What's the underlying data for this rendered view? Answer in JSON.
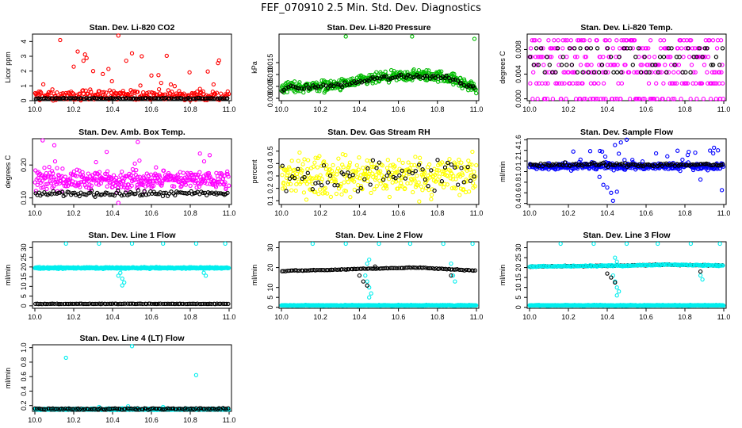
{
  "figure": {
    "title": "FEF_070910  2.5 Min. Std. Dev. Diagnostics"
  },
  "chart_data": [
    {
      "type": "scatter",
      "title": "Stan. Dev. Li-820 CO2",
      "ylabel": "Licor ppm",
      "xlim": [
        10.0,
        11.0
      ],
      "ylim": [
        0,
        4.5
      ],
      "xticks": [
        "10.0",
        "10.2",
        "10.4",
        "10.6",
        "10.8",
        "11.0"
      ],
      "yticks": [
        "0",
        "1",
        "2",
        "3",
        "4"
      ],
      "series": [
        {
          "name": "scatter",
          "color": "#ff0000",
          "n": 260,
          "base": 0.35,
          "spread": 0.55,
          "spike": 0.06,
          "spikemax": 3.0,
          "outliers": [
            [
              10.13,
              4.1
            ],
            [
              10.43,
              4.4
            ],
            [
              10.5,
              3.2
            ],
            [
              10.55,
              3.0
            ],
            [
              10.47,
              2.7
            ],
            [
              10.2,
              2.3
            ],
            [
              10.25,
              2.7
            ],
            [
              10.3,
              2.0
            ],
            [
              10.35,
              1.8
            ],
            [
              10.6,
              1.7
            ],
            [
              10.65,
              1.2
            ],
            [
              10.7,
              1.1
            ],
            [
              10.92,
              1.1
            ],
            [
              10.85,
              0.8
            ]
          ]
        },
        {
          "name": "mean",
          "color": "#000000",
          "n": 110,
          "base": 0.15,
          "spread": 0.06,
          "spike": 0,
          "spikemax": 0,
          "outliers": []
        }
      ]
    },
    {
      "type": "scatter",
      "title": "Stan. Dev. Li-820 Pressure",
      "ylabel": "kPa",
      "xlim": [
        10.0,
        11.0
      ],
      "ylim": [
        -0.001,
        0.027
      ],
      "xticks": [
        "10.0",
        "10.2",
        "10.4",
        "10.6",
        "10.8",
        "11.0"
      ],
      "yticks": [
        "0.000",
        "0.005",
        "0.010",
        "0.015"
      ],
      "series": [
        {
          "name": "scatter",
          "color": "#00bb00",
          "n": 420,
          "trend": [
            [
              10.0,
              0.0045
            ],
            [
              10.3,
              0.0055
            ],
            [
              10.5,
              0.0085
            ],
            [
              10.7,
              0.0098
            ],
            [
              10.85,
              0.009
            ],
            [
              11.0,
              0.004
            ]
          ],
          "spread": 0.0035,
          "spike": 0,
          "spikemax": 0,
          "outliers": [
            [
              10.33,
              0.026
            ],
            [
              10.67,
              0.026
            ],
            [
              10.99,
              0.025
            ]
          ]
        },
        {
          "name": "mean",
          "color": "#000000",
          "n": 90,
          "trend": [
            [
              10.0,
              0.004
            ],
            [
              10.3,
              0.0055
            ],
            [
              10.5,
              0.0085
            ],
            [
              10.7,
              0.0095
            ],
            [
              10.85,
              0.0088
            ],
            [
              11.0,
              0.004
            ]
          ],
          "spread": 0.0015,
          "spike": 0,
          "spikemax": 0,
          "outliers": []
        }
      ]
    },
    {
      "type": "scatter",
      "title": "Stan. Dev. Li-820 Temp.",
      "ylabel": "degrees C",
      "xlim": [
        10.0,
        11.0
      ],
      "ylim": [
        -0.0003,
        0.0105
      ],
      "xticks": [
        "10.0",
        "10.2",
        "10.4",
        "10.6",
        "10.8",
        "11.0"
      ],
      "yticks": [
        "0.000",
        "0.004",
        "0.008"
      ],
      "levels": [
        0.0,
        0.0025,
        0.0043,
        0.0055,
        0.0068,
        0.0082,
        0.0095
      ],
      "series": [
        {
          "name": "scatter",
          "color": "#ff00ff",
          "n": 320,
          "base": 0.0055,
          "spread": 0.0035,
          "spike": 0,
          "spikemax": 0,
          "outliers": [
            [
              10.08,
              0.0
            ],
            [
              10.28,
              0.0
            ],
            [
              10.38,
              0.0
            ],
            [
              10.62,
              0.0
            ],
            [
              10.78,
              0.0
            ],
            [
              10.98,
              0.0
            ]
          ]
        },
        {
          "name": "mean",
          "color": "#000000",
          "n": 70,
          "base": 0.0055,
          "spread": 0.0018,
          "spike": 0,
          "spikemax": 0,
          "outliers": []
        }
      ]
    },
    {
      "type": "scatter",
      "title": "Stan. Dev. Amb. Box Temp.",
      "ylabel": "degrees C",
      "xlim": [
        10.0,
        11.0
      ],
      "ylim": [
        0.08,
        0.28
      ],
      "xticks": [
        "10.0",
        "10.2",
        "10.4",
        "10.6",
        "10.8",
        "11.0"
      ],
      "yticks": [
        "0.10",
        "0.20"
      ],
      "series": [
        {
          "name": "scatter",
          "color": "#ff00ff",
          "n": 380,
          "base": 0.155,
          "spread": 0.045,
          "spike": 0.04,
          "spikemax": 0.06,
          "outliers": [
            [
              10.04,
              0.275
            ],
            [
              10.1,
              0.26
            ],
            [
              10.53,
              0.27
            ],
            [
              10.37,
              0.24
            ],
            [
              10.85,
              0.235
            ],
            [
              10.9,
              0.23
            ],
            [
              10.43,
              0.085
            ]
          ]
        },
        {
          "name": "mean",
          "color": "#000000",
          "n": 110,
          "base": 0.113,
          "spread": 0.012,
          "spike": 0,
          "spikemax": 0,
          "outliers": []
        }
      ]
    },
    {
      "type": "scatter",
      "title": "Stan. Dev. Gas Stream RH",
      "ylabel": "percent",
      "xlim": [
        10.0,
        11.0
      ],
      "ylim": [
        0.07,
        0.6
      ],
      "xticks": [
        "10.0",
        "10.2",
        "10.4",
        "10.6",
        "10.8",
        "11.0"
      ],
      "yticks": [
        "0.1",
        "0.2",
        "0.3",
        "0.4",
        "0.5"
      ],
      "series": [
        {
          "name": "scatter",
          "color": "#ffff00",
          "n": 360,
          "base": 0.3,
          "spread": 0.24,
          "spike": 0,
          "spikemax": 0,
          "outliers": []
        },
        {
          "name": "mean",
          "color": "#000000",
          "n": 60,
          "base": 0.3,
          "spread": 0.2,
          "spike": 0,
          "spikemax": 0,
          "outliers": []
        }
      ]
    },
    {
      "type": "scatter",
      "title": "Stan. Dev. Sample Flow",
      "ylabel": "ml/min",
      "xlim": [
        10.0,
        11.0
      ],
      "ylim": [
        0.38,
        1.62
      ],
      "xticks": [
        "10.0",
        "10.2",
        "10.4",
        "10.6",
        "10.8",
        "11.0"
      ],
      "yticks": [
        "0.4",
        "0.6",
        "0.8",
        "1.0",
        "1.2",
        "1.4",
        "1.6"
      ],
      "series": [
        {
          "name": "scatter",
          "color": "#0000ff",
          "n": 360,
          "base": 1.1,
          "spread": 0.1,
          "spike": 0.06,
          "spikemax": 0.35,
          "outliers": [
            [
              10.43,
              0.45
            ],
            [
              10.42,
              0.6
            ],
            [
              10.4,
              0.7
            ],
            [
              10.38,
              0.75
            ],
            [
              10.45,
              0.62
            ],
            [
              10.47,
              1.55
            ],
            [
              10.44,
              1.5
            ],
            [
              10.5,
              1.6
            ],
            [
              10.95,
              1.45
            ],
            [
              10.97,
              1.4
            ],
            [
              10.99,
              0.65
            ],
            [
              10.88,
              0.85
            ],
            [
              10.36,
              0.9
            ]
          ]
        },
        {
          "name": "mean",
          "color": "#000000",
          "n": 110,
          "base": 1.13,
          "spread": 0.05,
          "spike": 0,
          "spikemax": 0,
          "outliers": []
        }
      ]
    },
    {
      "type": "scatter",
      "title": "Stan. Dev. Line 1 Flow",
      "ylabel": "ml/min",
      "xlim": [
        10.0,
        11.0
      ],
      "ylim": [
        -1.3,
        33
      ],
      "xticks": [
        "10.0",
        "10.2",
        "10.4",
        "10.6",
        "10.8",
        "11.0"
      ],
      "yticks": [
        "0",
        "5",
        "10",
        "15",
        "20",
        "25",
        "30"
      ],
      "series": [
        {
          "name": "scatter",
          "color": "#00eeee",
          "n": 420,
          "base": 19.5,
          "spread": 0.6,
          "spike": 0,
          "spikemax": 0,
          "outliers": [
            [
              10.16,
              32
            ],
            [
              10.33,
              32
            ],
            [
              10.5,
              32
            ],
            [
              10.66,
              32
            ],
            [
              10.83,
              32
            ],
            [
              10.98,
              32
            ],
            [
              10.44,
              17
            ],
            [
              10.45,
              14
            ],
            [
              10.46,
              12
            ],
            [
              10.45,
              10.5
            ],
            [
              10.43,
              15.5
            ],
            [
              10.87,
              17
            ],
            [
              10.88,
              15.5
            ]
          ]
        },
        {
          "name": "mean",
          "color": "#000000",
          "n": 110,
          "base": 1.0,
          "spread": 0.15,
          "spike": 0,
          "spikemax": 0,
          "outliers": []
        }
      ]
    },
    {
      "type": "scatter",
      "title": "Stan. Dev. Line 2 Flow",
      "ylabel": "ml/min",
      "xlim": [
        10.0,
        11.0
      ],
      "ylim": [
        -0.5,
        33
      ],
      "xticks": [
        "10.0",
        "10.2",
        "10.4",
        "10.6",
        "10.8",
        "11.0"
      ],
      "yticks": [
        "0",
        "5",
        "10",
        "20",
        "30"
      ],
      "series": [
        {
          "name": "scatter",
          "color": "#00eeee",
          "n": 420,
          "base": 1.0,
          "spread": 0.3,
          "spike": 0,
          "spikemax": 0,
          "outliers": [
            [
              10.16,
              32
            ],
            [
              10.33,
              32
            ],
            [
              10.5,
              32
            ],
            [
              10.66,
              32
            ],
            [
              10.83,
              32
            ],
            [
              10.98,
              32
            ],
            [
              10.44,
              22
            ],
            [
              10.45,
              24
            ],
            [
              10.43,
              16
            ],
            [
              10.44,
              13
            ],
            [
              10.45,
              10
            ],
            [
              10.46,
              7
            ],
            [
              10.45,
              5
            ],
            [
              10.88,
              16
            ],
            [
              10.89,
              13
            ],
            [
              10.87,
              22
            ]
          ]
        },
        {
          "name": "mean",
          "color": "#000000",
          "n": 110,
          "trend": [
            [
              10.0,
              18.3
            ],
            [
              10.3,
              19.0
            ],
            [
              10.45,
              19.5
            ],
            [
              10.7,
              20.0
            ],
            [
              11.0,
              18.5
            ]
          ],
          "spread": 0.3,
          "spike": 0,
          "spikemax": 0,
          "outliers": [
            [
              10.4,
              16
            ],
            [
              10.42,
              13
            ],
            [
              10.44,
              11
            ],
            [
              10.48,
              20.5
            ],
            [
              10.87,
              16
            ]
          ]
        }
      ]
    },
    {
      "type": "scatter",
      "title": "Stan. Dev. Line 3 Flow",
      "ylabel": "ml/min",
      "xlim": [
        10.0,
        11.0
      ],
      "ylim": [
        -0.5,
        33
      ],
      "xticks": [
        "10.0",
        "10.2",
        "10.4",
        "10.6",
        "10.8",
        "11.0"
      ],
      "yticks": [
        "0",
        "5",
        "10",
        "15",
        "20",
        "25",
        "30"
      ],
      "series": [
        {
          "name": "scatter",
          "color": "#00eeee",
          "n": 420,
          "base": 1.0,
          "spread": 0.3,
          "spike": 0,
          "spikemax": 0,
          "outliers": [
            [
              10.16,
              32
            ],
            [
              10.33,
              32
            ],
            [
              10.5,
              32
            ],
            [
              10.66,
              32
            ],
            [
              10.83,
              32
            ],
            [
              10.98,
              32
            ],
            [
              10.44,
              25
            ],
            [
              10.45,
              23
            ],
            [
              10.43,
              16
            ],
            [
              10.44,
              13
            ],
            [
              10.45,
              10
            ],
            [
              10.46,
              8
            ],
            [
              10.45,
              6
            ],
            [
              10.88,
              16
            ],
            [
              10.89,
              14
            ]
          ]
        },
        {
          "name": "mean",
          "color": "#000000",
          "n": 110,
          "trend": [
            [
              10.0,
              20.5
            ],
            [
              10.5,
              21.0
            ],
            [
              10.7,
              21.5
            ],
            [
              11.0,
              21.0
            ]
          ],
          "spread": 0.3,
          "spike": 0,
          "spikemax": 0,
          "outliers": [
            [
              10.4,
              17
            ],
            [
              10.42,
              15
            ],
            [
              10.44,
              12.5
            ],
            [
              10.88,
              18
            ]
          ]
        },
        {
          "name": "band",
          "color": "#00eeee",
          "n": 180,
          "trend": [
            [
              10.0,
              20.5
            ],
            [
              10.5,
              21.0
            ],
            [
              10.7,
              21.5
            ],
            [
              11.0,
              21.0
            ]
          ],
          "spread": 0.4,
          "spike": 0,
          "spikemax": 0,
          "outliers": []
        }
      ]
    },
    {
      "type": "scatter",
      "title": "Stan. Dev. Line 4 (LT) Flow",
      "ylabel": "ml/min",
      "xlim": [
        10.0,
        11.0
      ],
      "ylim": [
        0.12,
        1.04
      ],
      "xticks": [
        "10.0",
        "10.2",
        "10.4",
        "10.6",
        "10.8",
        "11.0"
      ],
      "yticks": [
        "0.2",
        "0.4",
        "0.6",
        "0.8",
        "1.0"
      ],
      "series": [
        {
          "name": "scatter",
          "color": "#00eeee",
          "n": 320,
          "base": 0.15,
          "spread": 0.015,
          "spike": 0,
          "spikemax": 0,
          "outliers": [
            [
              10.16,
              0.86
            ],
            [
              10.5,
              1.02
            ],
            [
              10.83,
              0.62
            ],
            [
              10.33,
              0.18
            ],
            [
              10.66,
              0.18
            ],
            [
              10.48,
              0.19
            ]
          ]
        },
        {
          "name": "mean",
          "color": "#000000",
          "n": 110,
          "base": 0.155,
          "spread": 0.015,
          "spike": 0,
          "spikemax": 0,
          "outliers": []
        }
      ]
    }
  ]
}
